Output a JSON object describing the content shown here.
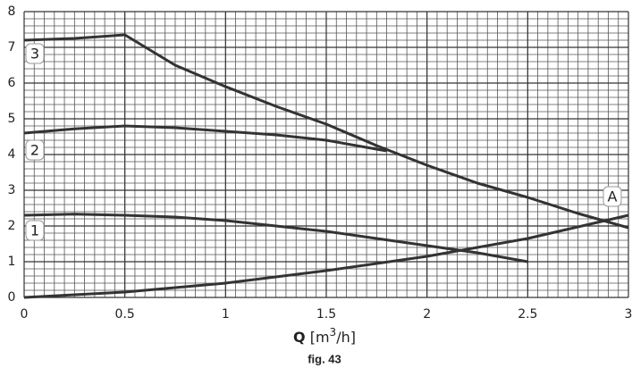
{
  "chart_data": {
    "type": "line",
    "xlabel": {
      "symbol": "Q",
      "unit": "[m",
      "exp": "3",
      "unit_end": "/h]"
    },
    "caption": "fig. 43",
    "xlim": [
      0,
      3
    ],
    "ylim": [
      0,
      8
    ],
    "xticks": [
      0,
      0.5,
      1,
      1.5,
      2,
      2.5,
      3
    ],
    "yticks": [
      0,
      1,
      2,
      3,
      4,
      5,
      6,
      7,
      8
    ],
    "grid": true,
    "minor_grid": {
      "x": 0.05,
      "y": 0.2
    },
    "series": [
      {
        "name": "1",
        "color": "#333333",
        "x": [
          0,
          0.25,
          0.5,
          0.75,
          1,
          1.25,
          1.5,
          1.75,
          2,
          2.25,
          2.5
        ],
        "values": [
          2.3,
          2.33,
          2.3,
          2.25,
          2.15,
          2.0,
          1.85,
          1.65,
          1.45,
          1.25,
          1.0
        ]
      },
      {
        "name": "2",
        "color": "#333333",
        "x": [
          0,
          0.25,
          0.5,
          0.75,
          1,
          1.25,
          1.5,
          1.8
        ],
        "values": [
          4.6,
          4.72,
          4.8,
          4.75,
          4.65,
          4.55,
          4.4,
          4.1
        ]
      },
      {
        "name": "3",
        "color": "#333333",
        "x": [
          0,
          0.25,
          0.5,
          0.75,
          1,
          1.25,
          1.5,
          1.75,
          2,
          2.25,
          2.5,
          2.75,
          3
        ],
        "values": [
          7.2,
          7.25,
          7.35,
          6.5,
          5.9,
          5.35,
          4.85,
          4.25,
          3.7,
          3.2,
          2.8,
          2.35,
          1.95
        ]
      },
      {
        "name": "A",
        "color": "#333333",
        "x": [
          0,
          0.5,
          1,
          1.5,
          2,
          2.5,
          3
        ],
        "values": [
          0,
          0.15,
          0.4,
          0.75,
          1.15,
          1.65,
          2.3
        ]
      }
    ]
  }
}
